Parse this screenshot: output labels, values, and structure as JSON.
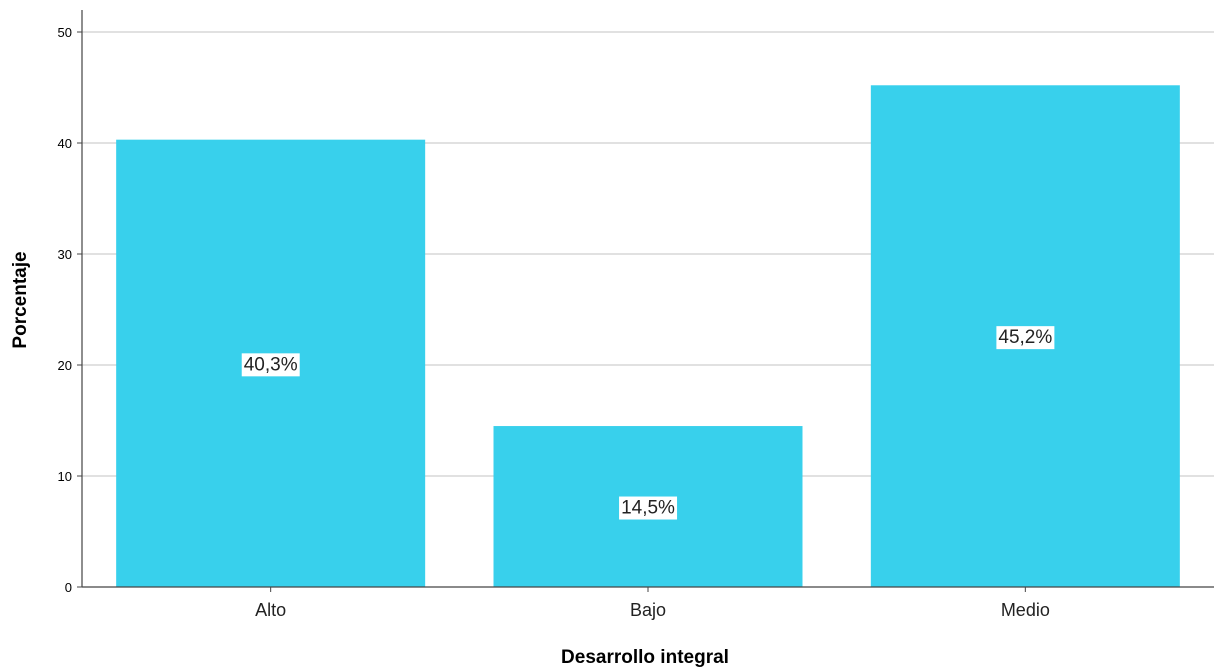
{
  "chart_data": {
    "type": "bar",
    "categories": [
      "Alto",
      "Bajo",
      "Medio"
    ],
    "values": [
      40.3,
      14.5,
      45.2
    ],
    "data_labels": [
      "40,3%",
      "14,5%",
      "45,2%"
    ],
    "xlabel": "Desarrollo integral",
    "ylabel": "Porcentaje",
    "ylim": [
      0,
      50
    ],
    "yticks": [
      0,
      10,
      20,
      30,
      40,
      50
    ],
    "grid": true,
    "colors": {
      "bar": "#38d0ec",
      "grid": "#cfcfcf",
      "axis": "#444444"
    }
  }
}
